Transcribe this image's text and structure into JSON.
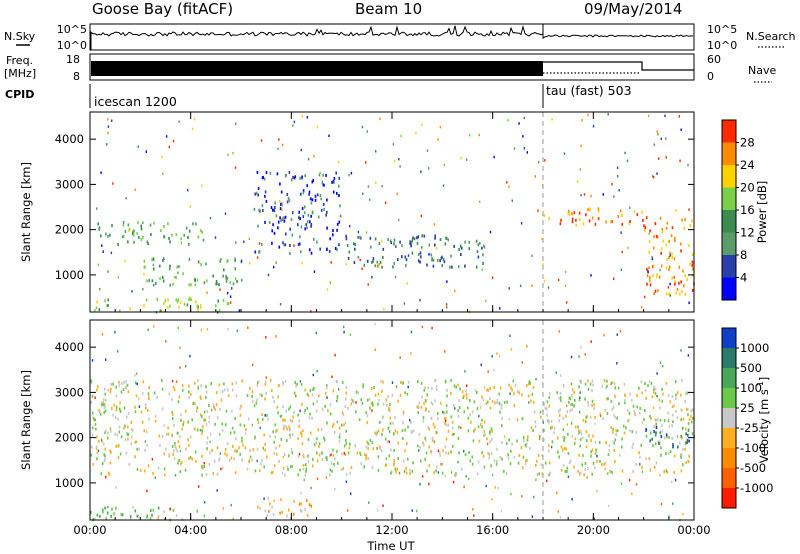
{
  "header": {
    "radar": "Goose Bay (fitACF)",
    "beam": "Beam 10",
    "date": "09/May/2014"
  },
  "panels": {
    "noise": {
      "left_label": "N.Sky",
      "right_label": "N.Search",
      "left_ticks": [
        "10^5",
        "10^0"
      ],
      "right_ticks": [
        "10^5",
        "10^0"
      ]
    },
    "freq": {
      "left_label_1": "Freq.",
      "left_label_2": "[MHz]",
      "right_label": "Nave",
      "left_ticks": [
        "18",
        "8"
      ],
      "right_ticks": [
        "60",
        "0"
      ]
    },
    "cpid": {
      "label": "CPID",
      "modes": [
        {
          "name": "icescan 1200",
          "start_hour": 0
        },
        {
          "name": "tau (fast) 503",
          "start_hour": 18
        }
      ]
    }
  },
  "colors": {
    "power": [
      "#0000ff",
      "#2a3fa8",
      "#5a9c6a",
      "#3c8c50",
      "#7ad04a",
      "#ffd200",
      "#ff8c00",
      "#ff2a00"
    ],
    "velocity": [
      "#1040c8",
      "#2a7a6a",
      "#46a858",
      "#6cc84a",
      "#c8c8c8",
      "#ffb020",
      "#ff8c00",
      "#ff6000",
      "#ff1a00"
    ]
  },
  "chart_data": [
    {
      "type": "heatmap",
      "title": "",
      "xlabel": "",
      "ylabel": "Slant Range [km]",
      "x_range": [
        "00:00",
        "24:00"
      ],
      "x_ticks": [
        "00:00",
        "04:00",
        "08:00",
        "12:00",
        "16:00",
        "20:00",
        "00:00"
      ],
      "ylim": [
        180,
        4600
      ],
      "y_ticks": [
        1000,
        2000,
        3000,
        4000
      ],
      "colorbar": {
        "label": "Power [dB]",
        "ticks": [
          "4",
          "8",
          "12",
          "16",
          "20",
          "24",
          "28"
        ],
        "range": [
          0,
          30
        ]
      },
      "scatter_regions": [
        {
          "t_start": 0.0,
          "t_end": 5.5,
          "r_low": 200,
          "r_high": 500,
          "level": 4
        },
        {
          "t_start": 0.0,
          "t_end": 4.5,
          "r_low": 1700,
          "r_high": 2200,
          "level": 3
        },
        {
          "t_start": 2.0,
          "t_end": 6.0,
          "r_low": 800,
          "r_high": 1400,
          "level": 3
        },
        {
          "t_start": 6.5,
          "t_end": 10.0,
          "r_low": 1500,
          "r_high": 3300,
          "level": 1
        },
        {
          "t_start": 10.0,
          "t_end": 16.0,
          "r_low": 1200,
          "r_high": 1900,
          "level": 2
        },
        {
          "t_start": 18.0,
          "t_end": 22.0,
          "r_low": 2100,
          "r_high": 2500,
          "level": 6
        },
        {
          "t_start": 22.0,
          "t_end": 24.0,
          "r_low": 600,
          "r_high": 2300,
          "level": 6
        }
      ]
    },
    {
      "type": "heatmap",
      "title": "",
      "xlabel": "Time UT",
      "ylabel": "Slant Range [km]",
      "x_range": [
        "00:00",
        "24:00"
      ],
      "x_ticks": [
        "00:00",
        "04:00",
        "08:00",
        "12:00",
        "16:00",
        "20:00",
        "00:00"
      ],
      "ylim": [
        180,
        4600
      ],
      "y_ticks": [
        1000,
        2000,
        3000,
        4000
      ],
      "colorbar": {
        "label": "Velocity [m s^-1]",
        "ticks": [
          "1000",
          "500",
          "100",
          "25",
          "-25",
          "-100",
          "-500",
          "-1000"
        ],
        "range": [
          -1000,
          1000
        ]
      },
      "scatter_regions": [
        {
          "t_start": 0.0,
          "t_end": 5.0,
          "r_low": 200,
          "r_high": 500,
          "level": 3
        },
        {
          "t_start": 6.5,
          "t_end": 9.0,
          "r_low": 300,
          "r_high": 700,
          "level": 5
        },
        {
          "t_start": 0.0,
          "t_end": 24.0,
          "r_low": 1200,
          "r_high": 3300,
          "level": 4
        },
        {
          "t_start": 22.0,
          "t_end": 24.0,
          "r_low": 1800,
          "r_high": 2300,
          "level": 1
        }
      ]
    }
  ]
}
